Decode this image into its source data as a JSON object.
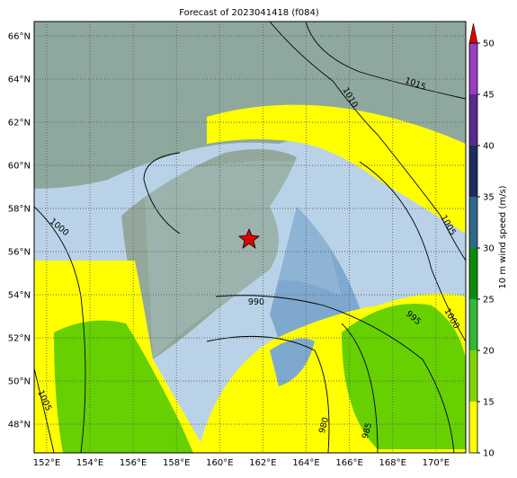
{
  "map": {
    "title": "Forecast of 2023041418 (f084)",
    "lonlim": [
      151.42,
      171.38
    ],
    "latlim": [
      46.67,
      66.67
    ],
    "lon_ticks": [
      {
        "value": 152,
        "label": "152°E"
      },
      {
        "value": 154,
        "label": "154°E"
      },
      {
        "value": 156,
        "label": "156°E"
      },
      {
        "value": 158,
        "label": "158°E"
      },
      {
        "value": 160,
        "label": "160°E"
      },
      {
        "value": 162,
        "label": "162°E"
      },
      {
        "value": 164,
        "label": "164°E"
      },
      {
        "value": 166,
        "label": "166°E"
      },
      {
        "value": 168,
        "label": "168°E"
      },
      {
        "value": 170,
        "label": "170°E"
      }
    ],
    "lat_ticks": [
      {
        "value": 48,
        "label": "48°N"
      },
      {
        "value": 50,
        "label": "50°N"
      },
      {
        "value": 52,
        "label": "52°N"
      },
      {
        "value": 54,
        "label": "54°N"
      },
      {
        "value": 56,
        "label": "56°N"
      },
      {
        "value": 58,
        "label": "58°N"
      },
      {
        "value": 60,
        "label": "60°N"
      },
      {
        "value": 62,
        "label": "62°N"
      },
      {
        "value": 64,
        "label": "64°N"
      },
      {
        "value": 66,
        "label": "66°N"
      }
    ],
    "colorbar": {
      "label": "10 m wind speed (m/s)",
      "lim": [
        10,
        50
      ],
      "ticks": [
        10,
        15,
        20,
        25,
        30,
        35,
        40,
        45,
        50
      ],
      "colors": [
        "#ffff00",
        "#7fd400",
        "#33b833",
        "#0c8c0c",
        "#2e6a88",
        "#1e2d5c",
        "#5a2a90",
        "#9b3cc4"
      ],
      "extend_color": "#e00000"
    },
    "contour_labels": [
      "1015",
      "1010",
      "1005",
      "1000",
      "990",
      "995",
      "1000",
      "1005",
      "980",
      "985"
    ]
  }
}
